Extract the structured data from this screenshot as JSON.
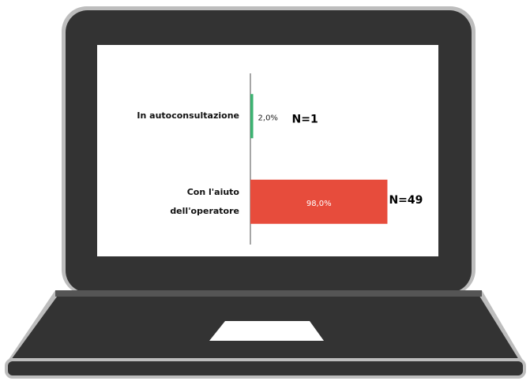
{
  "chart_data": {
    "type": "barh",
    "categories": [
      "In autoconsultazione",
      "Con l'aiuto dell'operatore"
    ],
    "values": [
      2.0,
      98.0
    ],
    "value_labels": [
      "2,0%",
      "98,0%"
    ],
    "colors": [
      "#3cb371",
      "#e74c3c"
    ],
    "annotations": [
      "N=1",
      "N=49"
    ],
    "xlim": [
      0,
      100
    ]
  }
}
